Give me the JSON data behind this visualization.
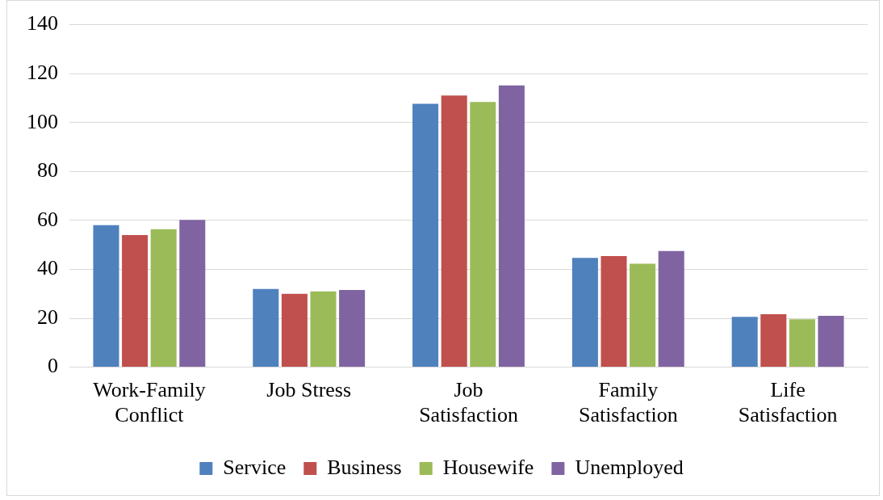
{
  "chart_data": {
    "type": "bar",
    "categories": [
      "Work-Family Conflict",
      "Job Stress",
      "Job Satisfaction",
      "Family Satisfaction",
      "Life Satisfaction"
    ],
    "series": [
      {
        "name": "Service",
        "color": "#4f81bd",
        "values": [
          58.1,
          32,
          107.7,
          44.7,
          20.6
        ]
      },
      {
        "name": "Business",
        "color": "#c0504d",
        "values": [
          54,
          30,
          111.1,
          45.4,
          21.7
        ]
      },
      {
        "name": "Housewife",
        "color": "#9bbb59",
        "values": [
          56.4,
          31,
          108.4,
          42.3,
          19.6
        ]
      },
      {
        "name": "Unemployed",
        "color": "#8064a2",
        "values": [
          60.2,
          31.6,
          115.2,
          47.5,
          21
        ]
      }
    ],
    "ylim": [
      0,
      140
    ],
    "yticks": [
      0,
      20,
      40,
      60,
      80,
      100,
      120,
      140
    ],
    "grid": "y",
    "legend": "bottom"
  }
}
